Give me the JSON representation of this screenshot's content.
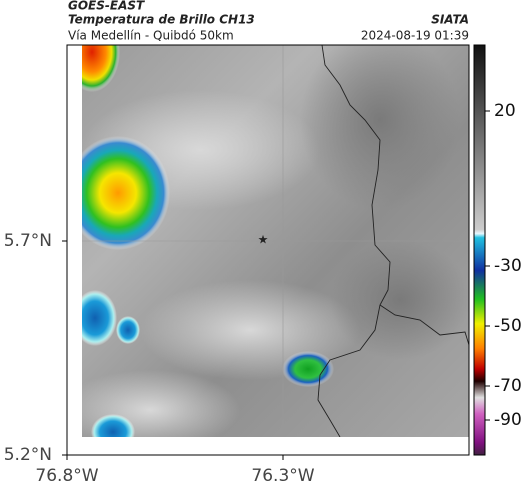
{
  "header": {
    "source": "GOES-EAST",
    "title": "Temperatura de Brillo CH13",
    "organization": "SIATA",
    "subtitle": "Vía Medellín - Quibdó 50km",
    "timestamp": "2024-08-19 01:39"
  },
  "map": {
    "y_labels": [
      "5.7°N",
      "5.2°N"
    ],
    "x_labels": [
      "76.8°W",
      "76.3°W"
    ]
  },
  "colorbar": {
    "ticks": [
      20,
      -30,
      -50,
      -70,
      -90
    ]
  }
}
